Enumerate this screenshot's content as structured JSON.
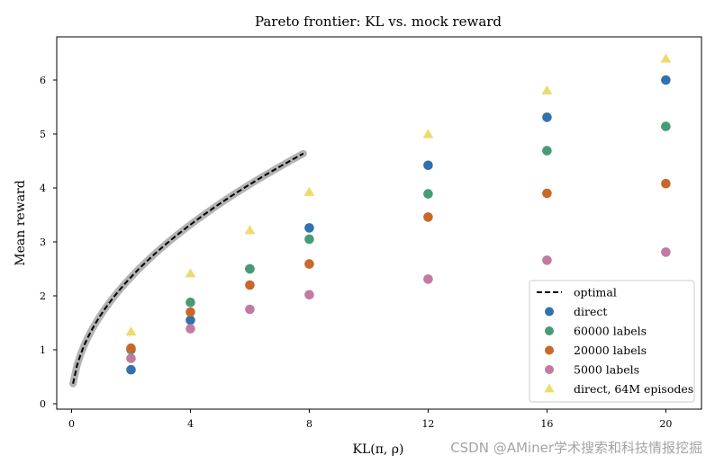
{
  "chart_data": {
    "type": "scatter",
    "title": "Pareto frontier: KL vs. mock reward",
    "xlabel": "KL(π, ρ)",
    "ylabel": "Mean reward",
    "xlim": [
      -0.5,
      21.2
    ],
    "ylim": [
      -0.1,
      6.8
    ],
    "xticks": [
      0,
      4,
      8,
      12,
      16,
      20
    ],
    "yticks": [
      0,
      1,
      2,
      3,
      4,
      5,
      6
    ],
    "grid": false,
    "legend_position": "lower-right",
    "optimal_curve": {
      "name": "optimal",
      "x_range": [
        0.05,
        7.8
      ],
      "coef": 1.66,
      "exponent": 0.5,
      "band_color": "#b3b3b3",
      "color": "#000000",
      "style": "dashed"
    },
    "series": [
      {
        "name": "direct",
        "marker": "circle",
        "color": "#3171ad",
        "x": [
          2,
          4,
          6,
          8,
          12,
          16,
          20
        ],
        "y": [
          0.63,
          1.55,
          2.5,
          3.26,
          4.42,
          5.31,
          6.0
        ]
      },
      {
        "name": "60000 labels",
        "marker": "circle",
        "color": "#469c76",
        "x": [
          2,
          4,
          6,
          8,
          12,
          16,
          20
        ],
        "y": [
          1.0,
          1.88,
          2.5,
          3.05,
          3.89,
          4.69,
          5.14
        ]
      },
      {
        "name": "20000 labels",
        "marker": "circle",
        "color": "#c8682b",
        "x": [
          2,
          4,
          6,
          8,
          12,
          16,
          20
        ],
        "y": [
          1.03,
          1.7,
          2.2,
          2.59,
          3.46,
          3.9,
          4.08
        ]
      },
      {
        "name": "5000 labels",
        "marker": "circle",
        "color": "#c27ba0",
        "x": [
          2,
          4,
          6,
          8,
          12,
          16,
          20
        ],
        "y": [
          0.84,
          1.39,
          1.75,
          2.02,
          2.31,
          2.66,
          2.81
        ]
      },
      {
        "name": "direct, 64M episodes",
        "marker": "triangle",
        "color": "#eddb6f",
        "x": [
          2,
          4,
          6,
          8,
          12,
          16,
          20
        ],
        "y": [
          1.33,
          2.41,
          3.21,
          3.92,
          4.99,
          5.8,
          6.39
        ]
      }
    ]
  },
  "watermark": "CSDN @AMiner学术搜索和科技情报挖掘"
}
